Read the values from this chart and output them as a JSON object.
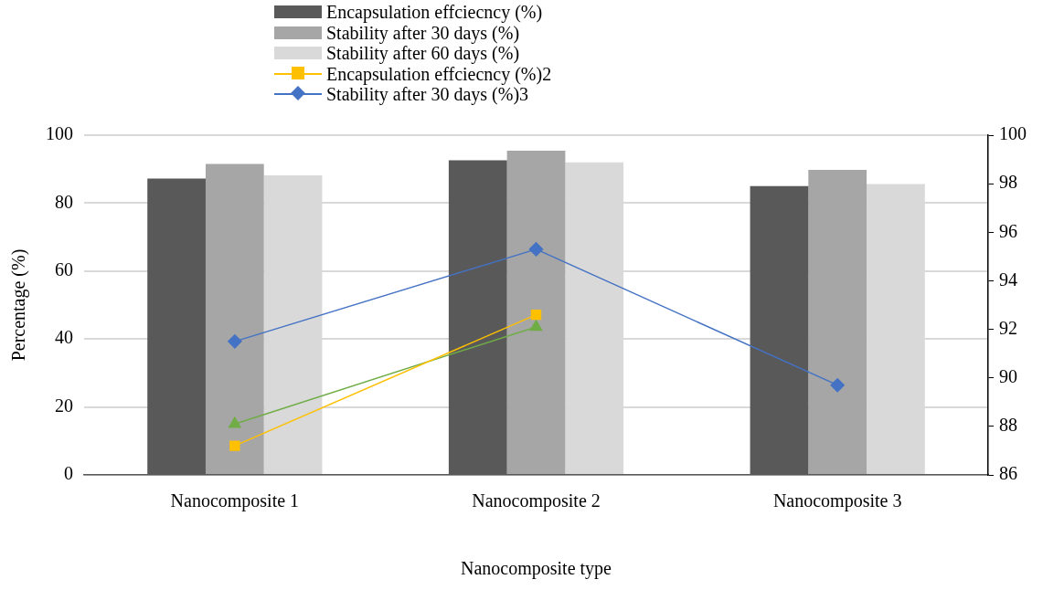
{
  "chart_data": {
    "type": "bar",
    "xlabel": "Nanocomposite type",
    "ylabel": "Percentage (%)",
    "categories": [
      "Nanocomposite 1",
      "Nanocomposite 2",
      "Nanocomposite 3"
    ],
    "series": [
      {
        "name": "Encapsulation effciecncy (%)",
        "color": "#595959",
        "values": [
          87.2,
          92.6,
          85.0
        ]
      },
      {
        "name": "Stability after 30 days (%)",
        "color": "#a6a6a6",
        "values": [
          91.5,
          95.4,
          89.8
        ]
      },
      {
        "name": "Stability after 60 days (%)",
        "color": "#d9d9d9",
        "values": [
          88.2,
          92.0,
          85.6
        ]
      },
      {
        "name": "Encapsulation effciecncy (%)2",
        "type": "line",
        "axis": "y2",
        "marker": "square",
        "color": "#ffc000",
        "values": [
          87.2,
          92.6,
          null
        ]
      },
      {
        "name": "Stability after 30 days (%)3",
        "type": "line",
        "axis": "y2",
        "marker": "diamond",
        "color": "#4472c4",
        "values": [
          91.5,
          95.3,
          89.7
        ]
      },
      {
        "type": "line",
        "axis": "y2",
        "marker": "triangle",
        "color": "#70ad47",
        "values": [
          88.1,
          92.1,
          null
        ]
      }
    ],
    "ylim": [
      0,
      100
    ],
    "yticks": [
      0,
      20,
      40,
      60,
      80,
      100
    ],
    "y2lim": [
      86,
      100
    ],
    "y2ticks": [
      86,
      88,
      90,
      92,
      94,
      96,
      98,
      100
    ],
    "grid": "y",
    "legend": "top"
  }
}
